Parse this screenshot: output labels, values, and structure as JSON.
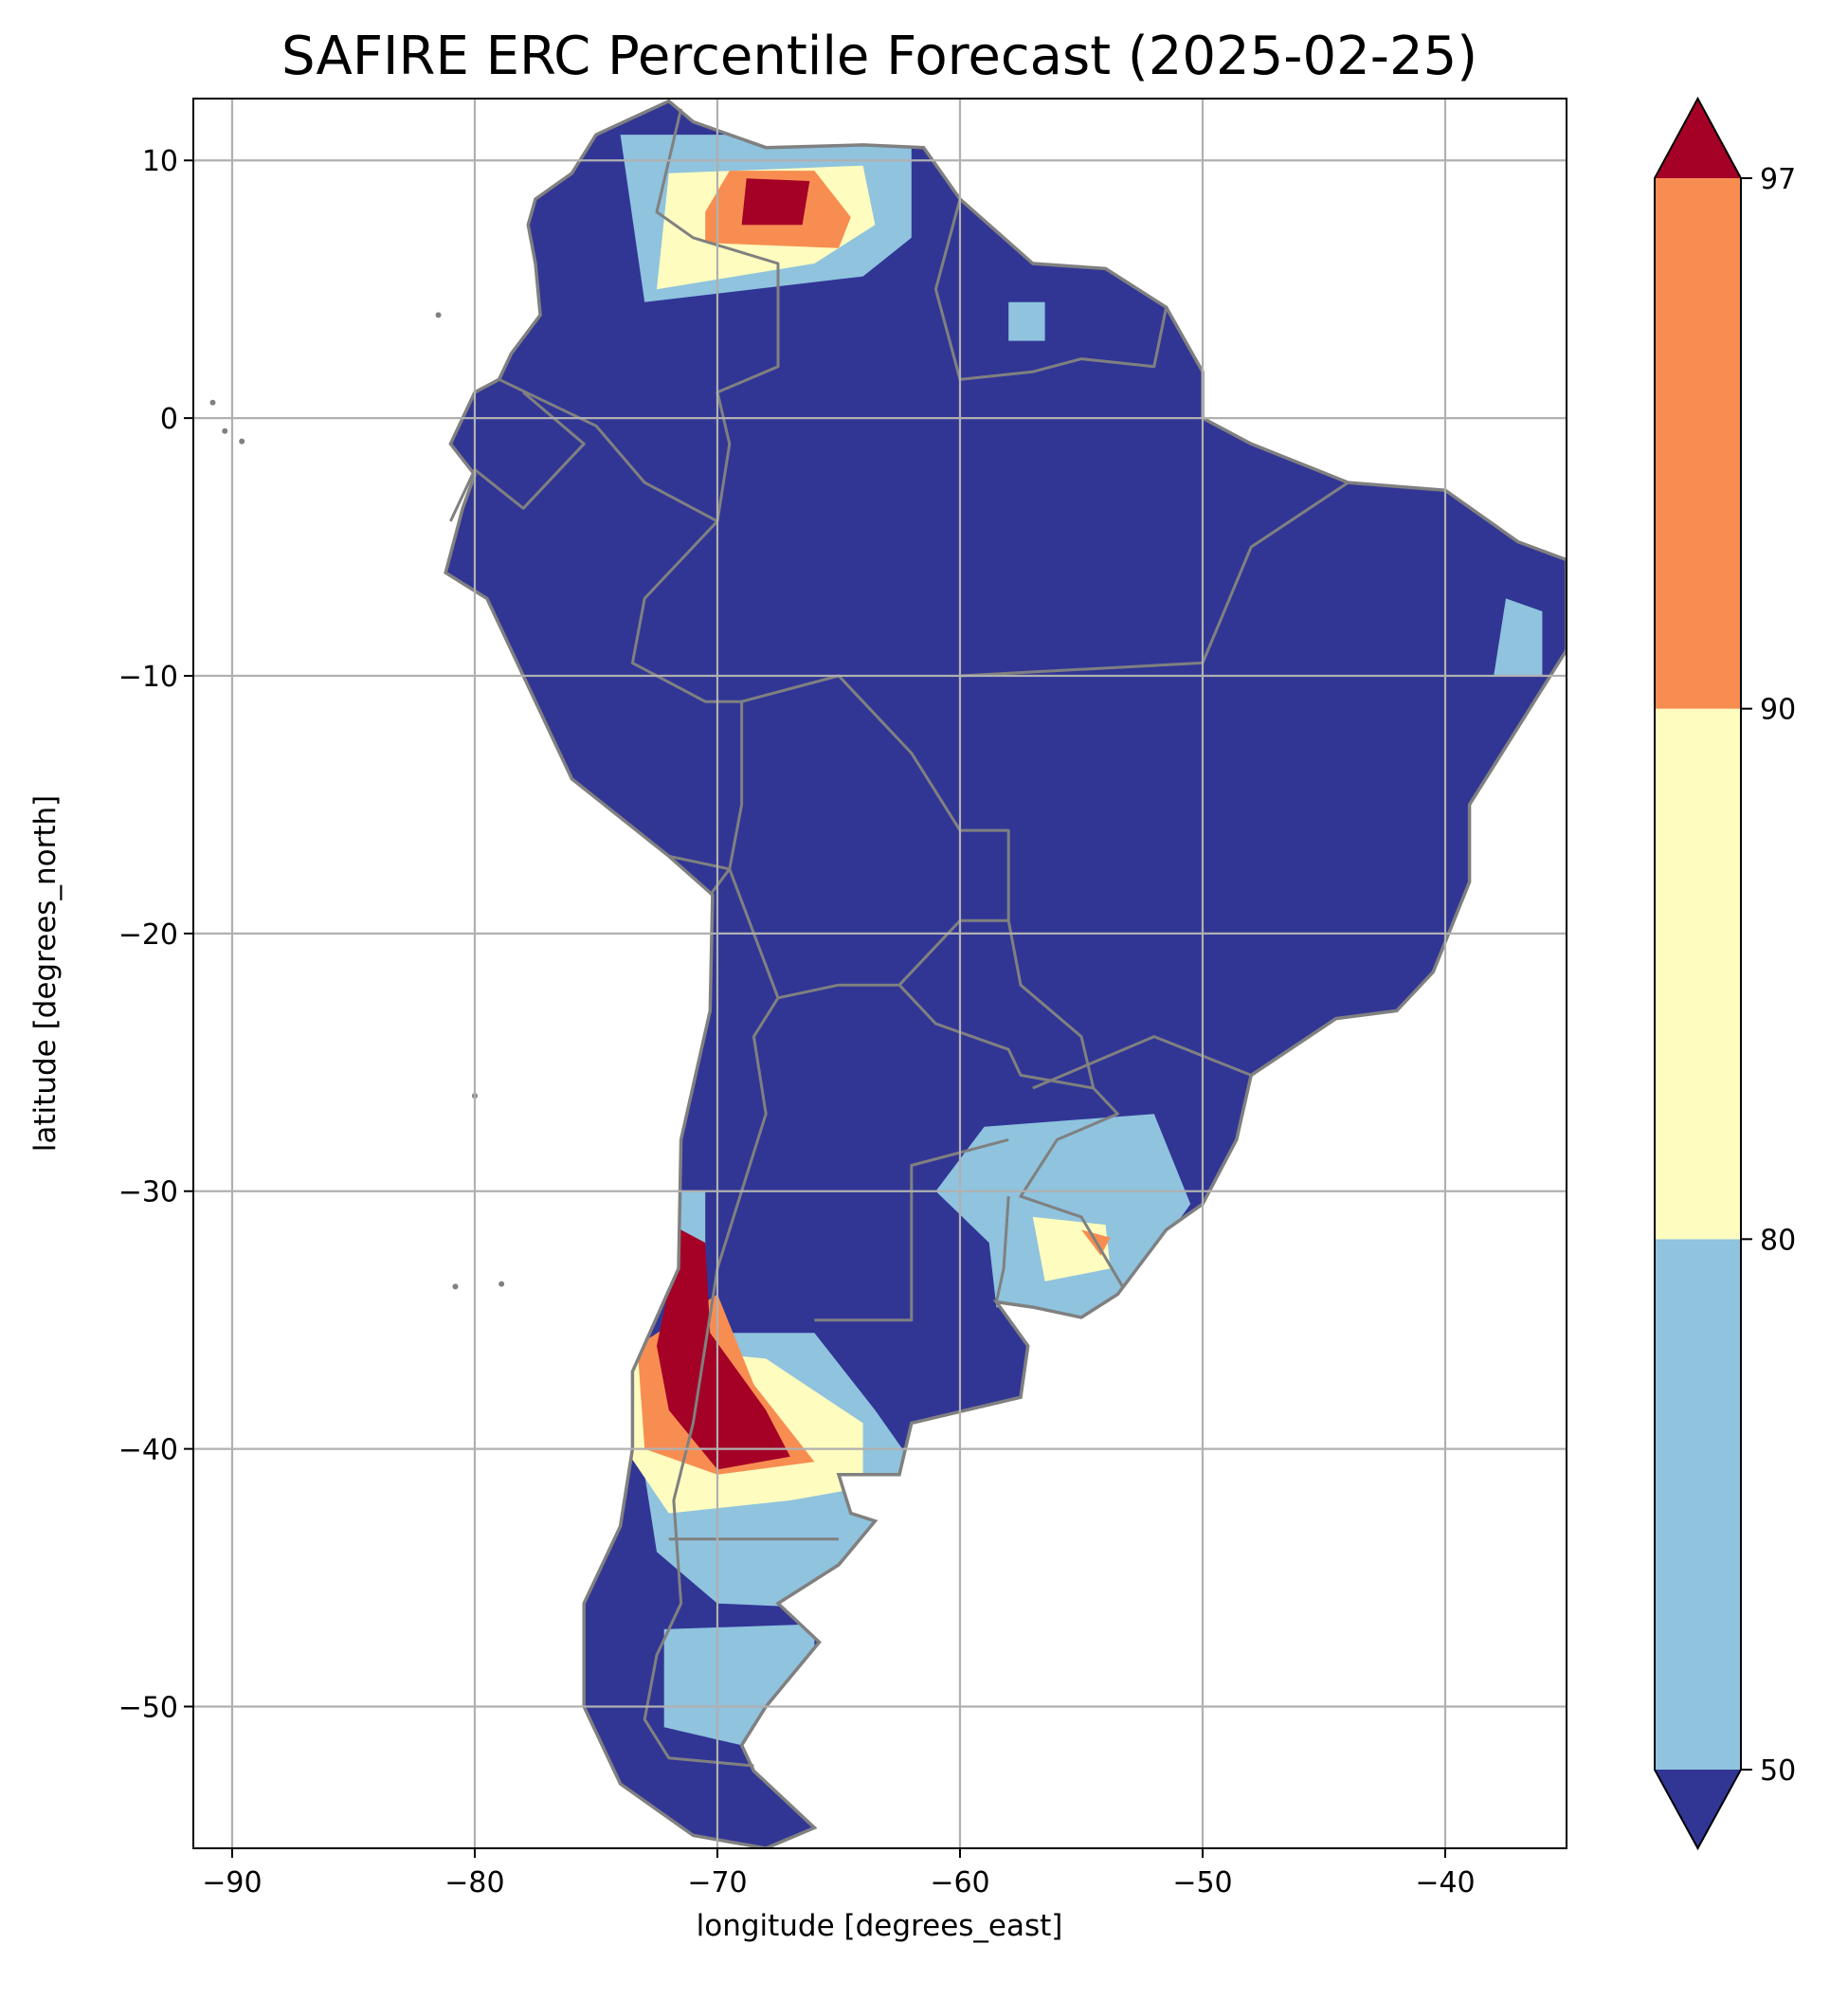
{
  "chart_data": {
    "type": "heatmap",
    "title": "SAFIRE ERC Percentile Forecast (2025-02-25)",
    "xlabel": "longitude [degrees_east]",
    "ylabel": "latitude [degrees_north]",
    "xlim": [
      -91.6,
      -35.0
    ],
    "ylim": [
      -55.5,
      12.4
    ],
    "xticks": [
      -90,
      -80,
      -70,
      -60,
      -50,
      -40
    ],
    "xtick_labels": [
      "−90",
      "−80",
      "−70",
      "−60",
      "−50",
      "−40"
    ],
    "yticks": [
      10,
      0,
      -10,
      -20,
      -30,
      -40,
      -50
    ],
    "ytick_labels": [
      "10",
      "0",
      "−10",
      "−20",
      "−30",
      "−40",
      "−50"
    ],
    "grid": true,
    "colorbar": {
      "levels": [
        50,
        80,
        90,
        97
      ],
      "tick_labels": [
        "50",
        "80",
        "90",
        "97"
      ],
      "extend": "both",
      "colors": {
        "under": "#313695",
        "50-80": "#8fc3de",
        "80-90": "#fefcbf",
        "90-97": "#f88d51",
        "over": "#a50026"
      },
      "placement": "right"
    },
    "border_color": "#808080",
    "grid_color": "#b0b0b0"
  }
}
